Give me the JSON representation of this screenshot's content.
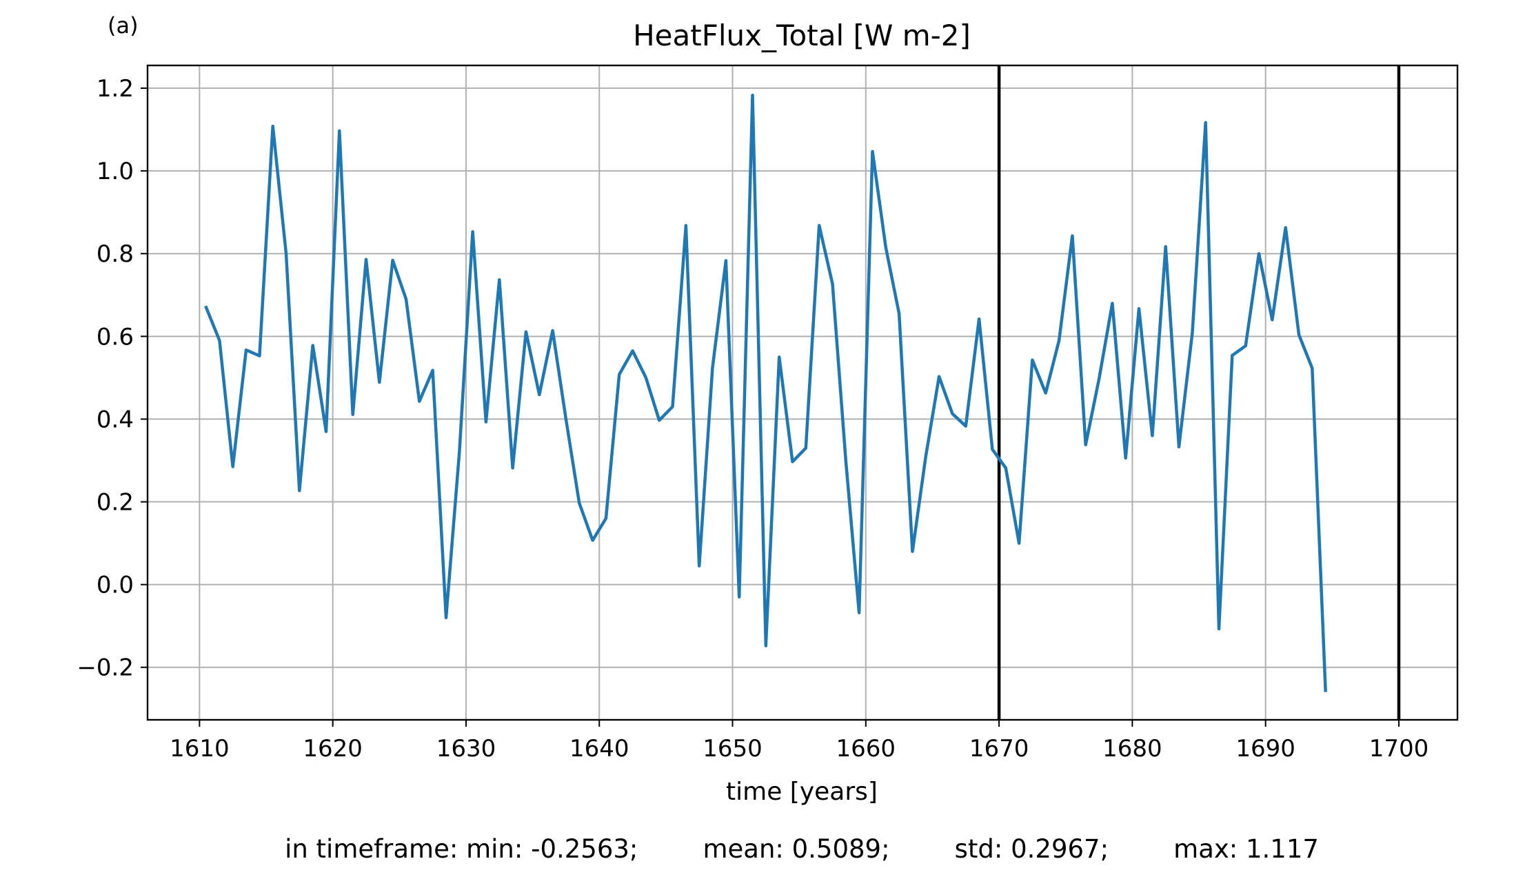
{
  "panel_label": "(a)",
  "stats_text": "in timeframe: min: -0.2563;        mean: 0.5089;        std: 0.2967;        max: 1.117",
  "colors": {
    "series": "#1f77b4",
    "grid": "#b0b0b0",
    "vline": "#000000"
  },
  "chart_data": {
    "type": "line",
    "title": "HeatFlux_Total [W m-2]",
    "xlabel": "time [years]",
    "ylabel": "",
    "xlim": [
      1606.1,
      1704.4
    ],
    "ylim": [
      -0.327,
      1.255
    ],
    "xticks": [
      1610,
      1620,
      1630,
      1640,
      1650,
      1660,
      1670,
      1680,
      1690,
      1700
    ],
    "yticks": [
      -0.2,
      0.0,
      0.2,
      0.4,
      0.6,
      0.8,
      1.0,
      1.2
    ],
    "ytick_labels": [
      "−0.2",
      "0.0",
      "0.2",
      "0.4",
      "0.6",
      "0.8",
      "1.0",
      "1.2"
    ],
    "grid": true,
    "vlines": [
      1670,
      1700
    ],
    "series": [
      {
        "name": "",
        "x": [
          1610.5,
          1611.5,
          1612.5,
          1613.5,
          1614.5,
          1615.5,
          1616.5,
          1617.5,
          1618.5,
          1619.5,
          1620.5,
          1621.5,
          1622.5,
          1623.5,
          1624.5,
          1625.5,
          1626.5,
          1627.5,
          1628.5,
          1629.5,
          1630.5,
          1631.5,
          1632.5,
          1633.5,
          1634.5,
          1635.5,
          1636.5,
          1637.5,
          1638.5,
          1639.5,
          1640.5,
          1641.5,
          1642.5,
          1643.5,
          1644.5,
          1645.5,
          1646.5,
          1647.5,
          1648.5,
          1649.5,
          1650.5,
          1651.5,
          1652.5,
          1653.5,
          1654.5,
          1655.5,
          1656.5,
          1657.5,
          1658.5,
          1659.5,
          1660.5,
          1661.5,
          1662.5,
          1663.5,
          1664.5,
          1665.5,
          1666.5,
          1667.5,
          1668.5,
          1669.5,
          1670.5,
          1671.5,
          1672.5,
          1673.5,
          1674.5,
          1675.5,
          1676.5,
          1677.5,
          1678.5,
          1679.5,
          1680.5,
          1681.5,
          1682.5,
          1683.5,
          1684.5,
          1685.5,
          1686.5,
          1687.5,
          1688.5,
          1689.5,
          1690.5,
          1691.5,
          1692.5,
          1693.5,
          1694.5
        ],
        "values": [
          0.67,
          0.59,
          0.285,
          0.567,
          0.553,
          1.108,
          0.8,
          0.227,
          0.578,
          0.37,
          1.097,
          0.411,
          0.786,
          0.489,
          0.784,
          0.69,
          0.443,
          0.518,
          -0.08,
          0.32,
          0.853,
          0.393,
          0.737,
          0.282,
          0.611,
          0.459,
          0.614,
          0.4,
          0.197,
          0.107,
          0.16,
          0.508,
          0.565,
          0.5,
          0.397,
          0.43,
          0.868,
          0.045,
          0.525,
          0.783,
          -0.03,
          1.183,
          -0.148,
          0.55,
          0.297,
          0.33,
          0.868,
          0.727,
          0.3,
          -0.068,
          1.047,
          0.815,
          0.655,
          0.08,
          0.31,
          0.503,
          0.413,
          0.383,
          0.642,
          0.327,
          0.282,
          0.1,
          0.543,
          0.463,
          0.59,
          0.843,
          0.338,
          0.497,
          0.68,
          0.306,
          0.667,
          0.36,
          0.817,
          0.333,
          0.608,
          1.117,
          -0.107,
          0.554,
          0.577,
          0.8,
          0.64,
          0.863,
          0.604,
          0.523,
          -0.256
        ]
      }
    ]
  }
}
